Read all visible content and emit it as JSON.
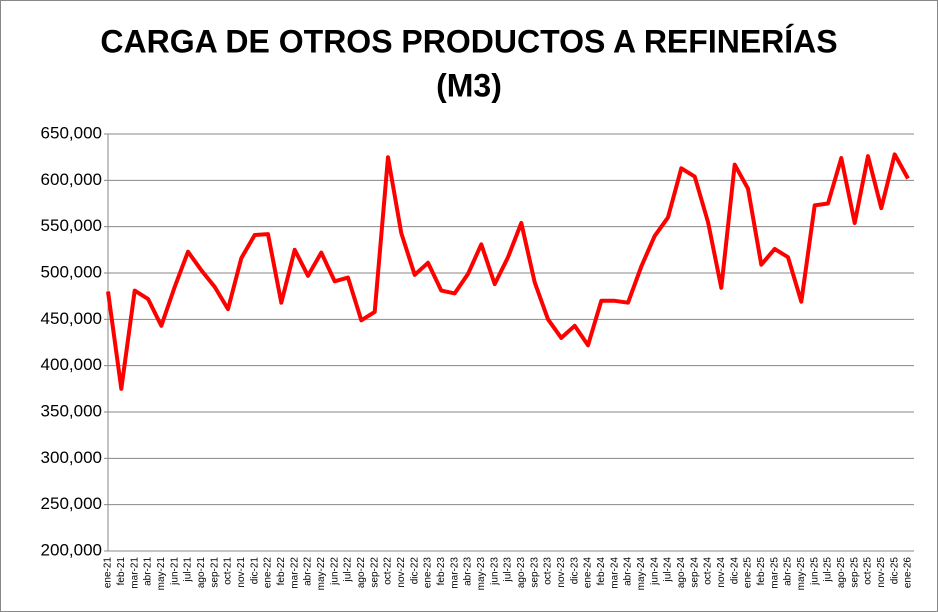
{
  "chart_data": {
    "type": "line",
    "title": [
      "CARGA DE OTROS PRODUCTOS A REFINERÍAS",
      "(M3)"
    ],
    "categories": [
      "ene-21",
      "feb-21",
      "mar-21",
      "abr-21",
      "may-21",
      "jun-21",
      "jul-21",
      "ago-21",
      "sep-21",
      "oct-21",
      "nov-21",
      "dic-21",
      "ene-22",
      "feb-22",
      "mar-22",
      "abr-22",
      "may-22",
      "jun-22",
      "jul-22",
      "ago-22",
      "sep-22",
      "oct-22",
      "nov-22",
      "dic-22",
      "ene-23",
      "feb-23",
      "mar-23",
      "abr-23",
      "may-23",
      "jun-23",
      "jul-23",
      "ago-23",
      "sep-23",
      "oct-23",
      "nov-23",
      "dic-23",
      "ene-24",
      "feb-24",
      "mar-24",
      "abr-24",
      "may-24",
      "jun-24",
      "jul-24",
      "ago-24",
      "sep-24",
      "oct-24",
      "nov-24",
      "dic-24",
      "ene-25",
      "feb-25",
      "mar-25",
      "abr-25",
      "may-25",
      "jun-25",
      "jul-25",
      "ago-25",
      "sep-25",
      "oct-25",
      "nov-25",
      "dic-25",
      "ene-26"
    ],
    "values": [
      480000,
      375000,
      481000,
      472000,
      443000,
      485000,
      523000,
      503000,
      485000,
      461000,
      516000,
      541000,
      542000,
      468000,
      525000,
      497000,
      522000,
      491000,
      495000,
      449000,
      458000,
      625000,
      543000,
      498000,
      511000,
      481000,
      478000,
      499000,
      531000,
      488000,
      517000,
      554000,
      490000,
      450000,
      430000,
      443000,
      422000,
      470000,
      470000,
      468000,
      507000,
      540000,
      560000,
      613000,
      604000,
      555000,
      484000,
      617000,
      591000,
      509000,
      526000,
      517000,
      469000,
      573000,
      575000,
      624000,
      554000,
      626000,
      570000,
      628000,
      602000
    ],
    "color": "#ff0000",
    "ylim": [
      200000,
      650000
    ],
    "yticks": [
      {
        "value": 200000,
        "label": "200,000"
      },
      {
        "value": 250000,
        "label": "250,000"
      },
      {
        "value": 300000,
        "label": "300,000"
      },
      {
        "value": 350000,
        "label": "350,000"
      },
      {
        "value": 400000,
        "label": "400,000"
      },
      {
        "value": 450000,
        "label": "450,000"
      },
      {
        "value": 500000,
        "label": "500,000"
      },
      {
        "value": 550000,
        "label": "550,000"
      },
      {
        "value": 600000,
        "label": "600,000"
      },
      {
        "value": 650000,
        "label": "650,000"
      }
    ],
    "grid": true
  }
}
